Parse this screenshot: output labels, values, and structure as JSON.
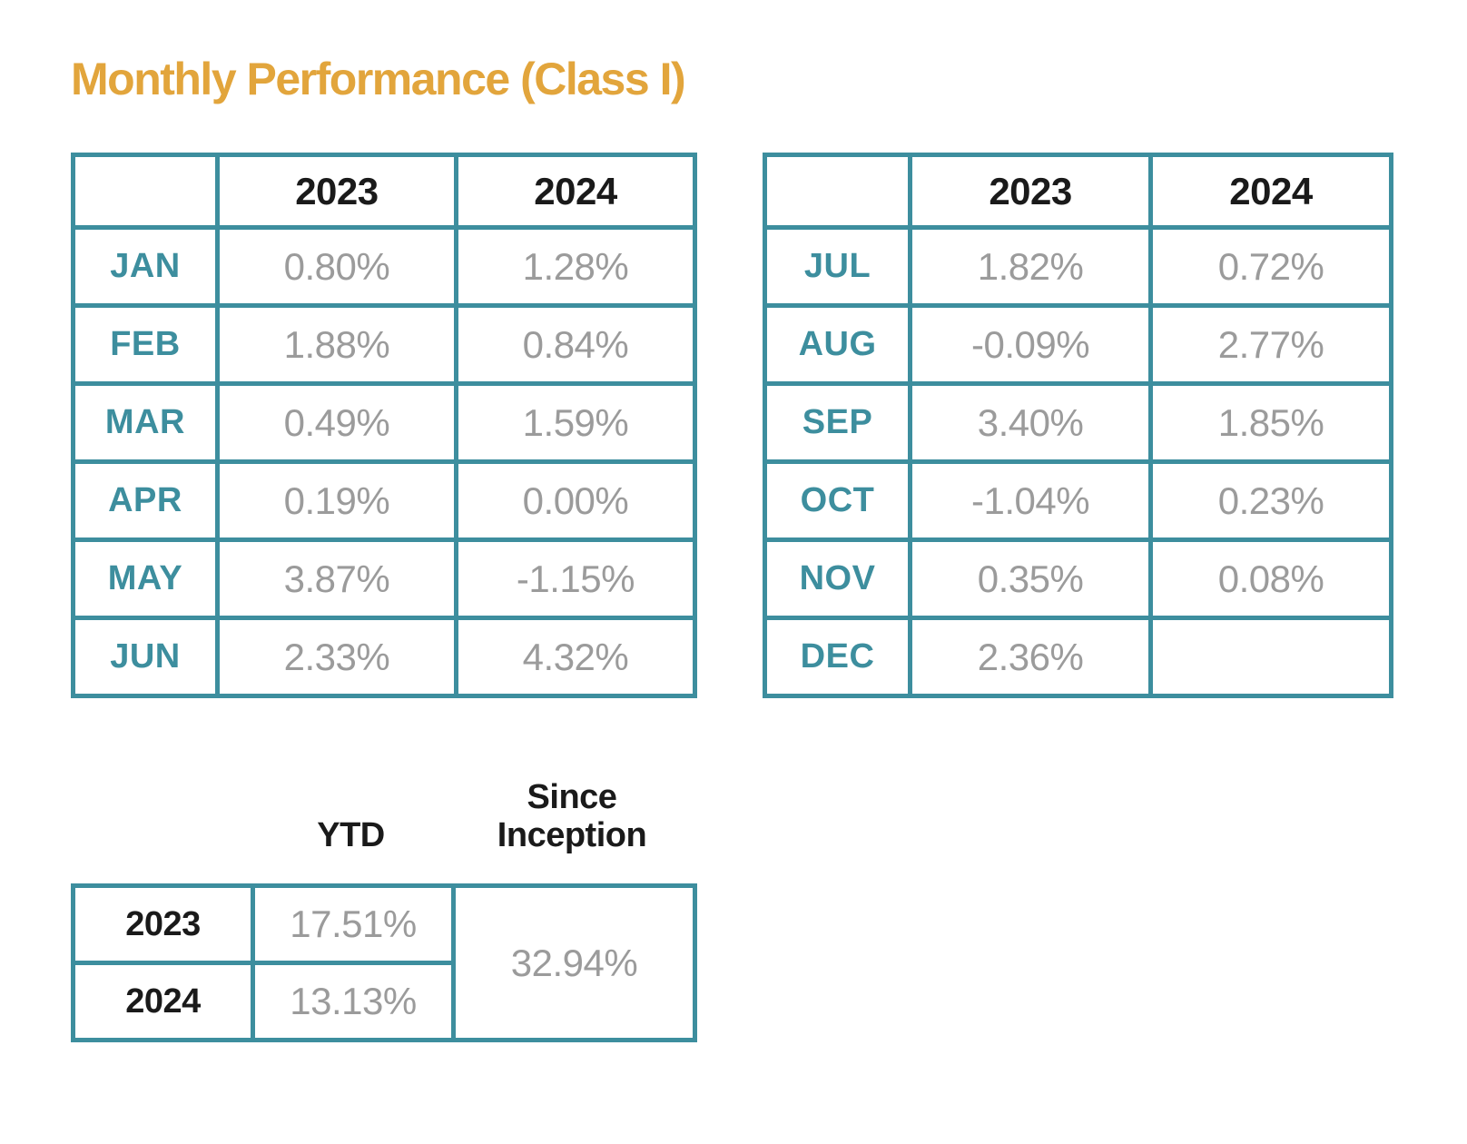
{
  "title": "Monthly Performance (Class I)",
  "colors": {
    "accent_teal": "#3D8E9E",
    "title_gold": "#E2A53C",
    "value_gray": "#9B9B9B",
    "text_black": "#1a1a1a"
  },
  "left_table": {
    "col_headers": [
      "2023",
      "2024"
    ],
    "rows": [
      {
        "month": "JAN",
        "y2023": "0.80%",
        "y2024": "1.28%"
      },
      {
        "month": "FEB",
        "y2023": "1.88%",
        "y2024": "0.84%"
      },
      {
        "month": "MAR",
        "y2023": "0.49%",
        "y2024": "1.59%"
      },
      {
        "month": "APR",
        "y2023": "0.19%",
        "y2024": "0.00%"
      },
      {
        "month": "MAY",
        "y2023": "3.87%",
        "y2024": "-1.15%"
      },
      {
        "month": "JUN",
        "y2023": "2.33%",
        "y2024": "4.32%"
      }
    ]
  },
  "right_table": {
    "col_headers": [
      "2023",
      "2024"
    ],
    "rows": [
      {
        "month": "JUL",
        "y2023": "1.82%",
        "y2024": "0.72%"
      },
      {
        "month": "AUG",
        "y2023": "-0.09%",
        "y2024": "2.77%"
      },
      {
        "month": "SEP",
        "y2023": "3.40%",
        "y2024": "1.85%"
      },
      {
        "month": "OCT",
        "y2023": "-1.04%",
        "y2024": "0.23%"
      },
      {
        "month": "NOV",
        "y2023": "0.35%",
        "y2024": "0.08%"
      },
      {
        "month": "DEC",
        "y2023": "2.36%",
        "y2024": ""
      }
    ]
  },
  "summary_table": {
    "col_headers": [
      "YTD",
      "Since Inception"
    ],
    "rows": [
      {
        "year": "2023",
        "ytd": "17.51%"
      },
      {
        "year": "2024",
        "ytd": "13.13%"
      }
    ],
    "since_inception": "32.94%"
  }
}
